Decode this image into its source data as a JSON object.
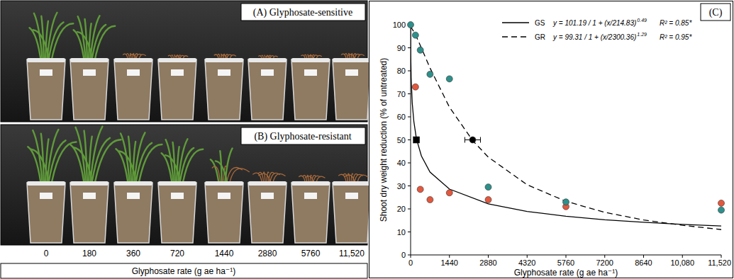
{
  "chart_data": {
    "type": "scatter",
    "title": "(C)",
    "x_label": "Glyphosate rate (g ae ha⁻¹)",
    "y_label": "Shoot dry weight reduction (% of untreated)",
    "xlim": [
      0,
      11520
    ],
    "ylim": [
      0,
      100
    ],
    "xticks": [
      0,
      1440,
      2880,
      4320,
      5760,
      7200,
      8640,
      {
        "value": 10080,
        "label": "10,080"
      },
      {
        "value": 11520,
        "label": "11,520"
      }
    ],
    "yticks": [
      0,
      10,
      20,
      30,
      40,
      50,
      60,
      70,
      80,
      90,
      100
    ],
    "legend": "top-right",
    "grid": false,
    "series": [
      {
        "type": "scatter",
        "color": "#e2583e",
        "marker": "circle",
        "x": [
          180,
          360,
          720,
          1440,
          2880,
          5760,
          11520
        ],
        "values": [
          73,
          28.5,
          24,
          27,
          24,
          21,
          22.5
        ]
      },
      {
        "type": "scatter",
        "color": "#2f8f8a",
        "marker": "circle",
        "x": [
          0,
          180,
          360,
          720,
          1440,
          2880,
          5760,
          11520
        ],
        "values": [
          100,
          95.5,
          89,
          78.5,
          76.5,
          29.5,
          23,
          19.5
        ]
      },
      {
        "type": "line",
        "name": "GS",
        "equation": "y = 101.19 / 1 + (x/214.83)",
        "exponent": "0.49",
        "r_squared": "R² = 0.85*",
        "color": "#000000",
        "line_style": "solid",
        "x": [
          0,
          5,
          20,
          60,
          120,
          215,
          400,
          720,
          1440,
          2880,
          4320,
          5760,
          7200,
          8640,
          10080,
          11520
        ],
        "values": [
          100,
          87,
          77,
          66,
          58,
          50.5,
          43,
          36,
          28.6,
          22.2,
          18.9,
          16.8,
          15.3,
          14.2,
          13.3,
          12.6
        ]
      },
      {
        "type": "line",
        "name": "GR",
        "equation": "y = 99.31 / 1 + (x/2300.36)",
        "exponent": "1.29",
        "r_squared": "R² = 0.95*",
        "color": "#000000",
        "line_style": "dashed",
        "x": [
          0,
          180,
          360,
          720,
          1440,
          2300,
          2880,
          4320,
          5760,
          7200,
          8640,
          10080,
          11520
        ],
        "values": [
          99.3,
          95.7,
          91,
          81.2,
          64.2,
          49.7,
          42.5,
          30.5,
          23.3,
          18.5,
          15.2,
          12.9,
          11
        ]
      },
      {
        "type": "scatter",
        "color": "#000000",
        "marker": "square",
        "x": [
          215
        ],
        "values": [
          50
        ],
        "x_error": [
          30
        ]
      },
      {
        "type": "scatter",
        "color": "#000000",
        "marker": "circle",
        "x": [
          2300
        ],
        "values": [
          50
        ],
        "x_error": [
          290
        ]
      }
    ]
  },
  "photos": {
    "panels": [
      {
        "label": "(A) Glyphosate-sensitive"
      },
      {
        "label": "(B) Glyphosate-resistant"
      }
    ],
    "rates": [
      "0",
      "180",
      "360",
      "720",
      "1440",
      "2880",
      "5760",
      "11,520"
    ],
    "rate_label": "Glyphosate rate (g ae ha⁻¹)"
  }
}
